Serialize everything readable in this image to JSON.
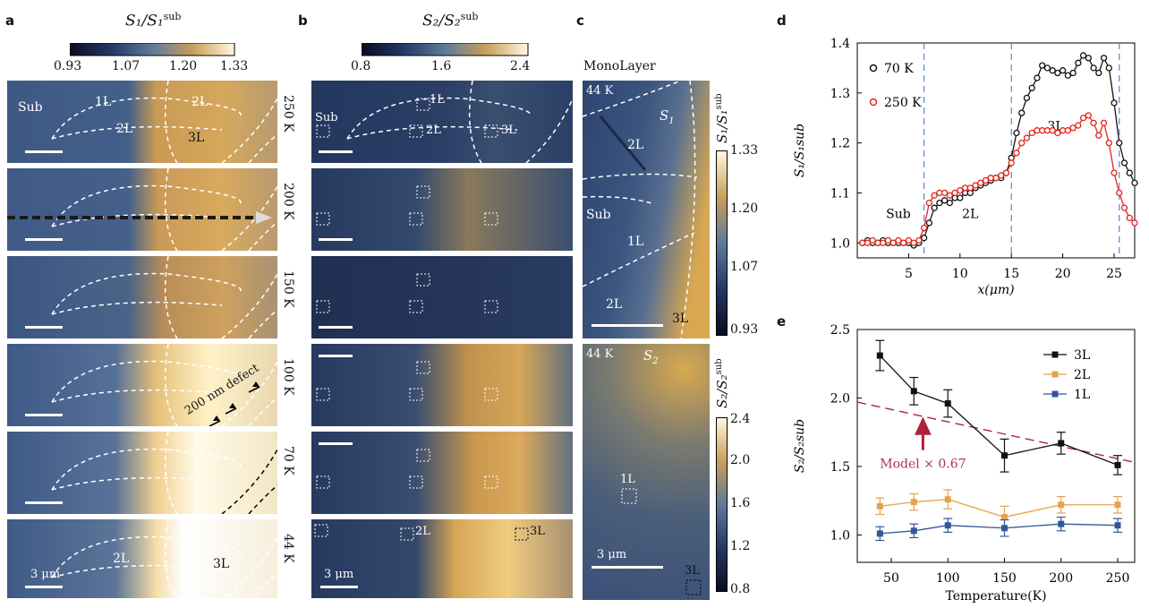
{
  "panels": {
    "a": "a",
    "b": "b",
    "c": "c",
    "d": "d",
    "e": "e"
  },
  "colorbar_a": {
    "title": "S₁/S₁",
    "sup": "sub",
    "ticks": [
      "0.93",
      "1.07",
      "1.20",
      "1.33"
    ]
  },
  "colorbar_b": {
    "title": "S₂/S₂",
    "sup": "sub",
    "ticks": [
      "0.8",
      "1.6",
      "2.4"
    ]
  },
  "temps": [
    "250 K",
    "200 K",
    "150 K",
    "100 K",
    "70 K",
    "44 K"
  ],
  "labels_a": {
    "sub": "Sub",
    "l1": "1L",
    "l2": "2L",
    "l2b": "2L",
    "l3": "3L",
    "defect": "200 nm defect",
    "scale": "3 μm",
    "l2_44": "2L",
    "l3_44": "3L"
  },
  "labels_b": {
    "sub": "Sub",
    "l1": "1L",
    "l2": "2L",
    "l3": "3L",
    "scale": "3 μm",
    "l2_44": "2L",
    "l3_44": "3L"
  },
  "panel_c": {
    "title": "MonoLayer",
    "top": {
      "temp": "44 K",
      "sym": "S",
      "symsub": "1",
      "l2": "2L",
      "sub": "Sub",
      "l1": "1L",
      "l2b": "2L",
      "l3": "3L"
    },
    "bot": {
      "temp": "44 K",
      "sym": "S",
      "symsub": "2",
      "l1": "1L",
      "scale": "3 μm",
      "l3": "3L"
    },
    "cb1": {
      "ticks": [
        "1.33",
        "1.20",
        "1.07",
        "0.93"
      ],
      "label": "S₁/S₁",
      "sup": "sub"
    },
    "cb2": {
      "ticks": [
        "2.4",
        "2.0",
        "1.6",
        "1.2",
        "0.8"
      ],
      "label": "S₂/S₂",
      "sup": "sub"
    }
  },
  "chart_data": [
    {
      "type": "line",
      "panel": "d",
      "xlabel": "x(μm)",
      "ylabel": "S₁/S₁sub",
      "xlim": [
        0,
        27
      ],
      "ylim": [
        0.97,
        1.4
      ],
      "xticks": [
        5,
        10,
        15,
        20,
        25
      ],
      "yticks": [
        1.0,
        1.1,
        1.2,
        1.3,
        1.4
      ],
      "vlines": [
        6.5,
        15,
        25.5
      ],
      "region_labels": [
        "Sub",
        "2L",
        "3L"
      ],
      "series": [
        {
          "name": "70 K",
          "color": "#111111",
          "x": [
            0.5,
            1,
            1.5,
            2,
            2.5,
            3,
            3.5,
            4,
            4.5,
            5,
            5.5,
            6,
            6.5,
            7,
            7.5,
            8,
            8.5,
            9,
            9.5,
            10,
            10.5,
            11,
            11.5,
            12,
            12.5,
            13,
            13.5,
            14,
            14.5,
            15,
            15.5,
            16,
            16.5,
            17,
            17.5,
            18,
            18.5,
            19,
            19.5,
            20,
            20.5,
            21,
            21.5,
            22,
            22.5,
            23,
            23.5,
            24,
            24.5,
            25,
            25.5,
            26,
            26.5,
            27
          ],
          "y": [
            1.0,
            1.005,
            1.0,
            1.0,
            1.005,
            1.0,
            1.0,
            1.0,
            1.0,
            1.0,
            0.995,
            1.0,
            1.01,
            1.04,
            1.07,
            1.08,
            1.085,
            1.08,
            1.09,
            1.09,
            1.1,
            1.1,
            1.11,
            1.115,
            1.12,
            1.125,
            1.13,
            1.13,
            1.14,
            1.17,
            1.22,
            1.26,
            1.29,
            1.31,
            1.33,
            1.355,
            1.35,
            1.345,
            1.34,
            1.345,
            1.335,
            1.34,
            1.36,
            1.375,
            1.37,
            1.35,
            1.34,
            1.37,
            1.35,
            1.28,
            1.2,
            1.16,
            1.14,
            1.12
          ]
        },
        {
          "name": "250 K",
          "color": "#e0241c",
          "x": [
            0.5,
            1,
            1.5,
            2,
            2.5,
            3,
            3.5,
            4,
            4.5,
            5,
            5.5,
            6,
            6.5,
            7,
            7.5,
            8,
            8.5,
            9,
            9.5,
            10,
            10.5,
            11,
            11.5,
            12,
            12.5,
            13,
            13.5,
            14,
            14.5,
            15,
            15.5,
            16,
            16.5,
            17,
            17.5,
            18,
            18.5,
            19,
            19.5,
            20,
            20.5,
            21,
            21.5,
            22,
            22.5,
            23,
            23.5,
            24,
            24.5,
            25,
            25.5,
            26,
            26.5,
            27
          ],
          "y": [
            1.0,
            1.0,
            1.005,
            1.0,
            1.0,
            1.005,
            1.0,
            1.005,
            1.0,
            1.005,
            1.0,
            1.005,
            1.03,
            1.08,
            1.095,
            1.1,
            1.1,
            1.095,
            1.1,
            1.105,
            1.11,
            1.11,
            1.115,
            1.12,
            1.125,
            1.13,
            1.13,
            1.135,
            1.14,
            1.16,
            1.18,
            1.2,
            1.21,
            1.22,
            1.225,
            1.225,
            1.225,
            1.225,
            1.22,
            1.225,
            1.225,
            1.23,
            1.235,
            1.25,
            1.255,
            1.24,
            1.215,
            1.24,
            1.2,
            1.14,
            1.1,
            1.07,
            1.05,
            1.04
          ]
        }
      ]
    },
    {
      "type": "line",
      "panel": "e",
      "xlabel": "Temperature(K)",
      "ylabel": "S₂/S₂sub",
      "xlim": [
        20,
        265
      ],
      "ylim": [
        0.8,
        2.5
      ],
      "xticks": [
        50,
        100,
        150,
        200,
        250
      ],
      "yticks": [
        1.0,
        1.5,
        2.0,
        2.5
      ],
      "annotation": "Model × 0.67",
      "model_line": {
        "x": [
          20,
          265
        ],
        "y": [
          1.97,
          1.53
        ]
      },
      "series": [
        {
          "name": "3L",
          "color": "#111111",
          "x": [
            40,
            70,
            100,
            150,
            200,
            250
          ],
          "y": [
            2.31,
            2.05,
            1.96,
            1.58,
            1.67,
            1.51
          ],
          "err": [
            0.11,
            0.1,
            0.1,
            0.12,
            0.08,
            0.07
          ]
        },
        {
          "name": "2L",
          "color": "#e6a24b",
          "x": [
            40,
            70,
            100,
            150,
            200,
            250
          ],
          "y": [
            1.21,
            1.24,
            1.26,
            1.13,
            1.22,
            1.22
          ],
          "err": [
            0.06,
            0.06,
            0.07,
            0.08,
            0.06,
            0.06
          ]
        },
        {
          "name": "1L",
          "color": "#33569b",
          "x": [
            40,
            70,
            100,
            150,
            200,
            250
          ],
          "y": [
            1.01,
            1.03,
            1.07,
            1.05,
            1.08,
            1.07
          ],
          "err": [
            0.05,
            0.05,
            0.05,
            0.06,
            0.05,
            0.05
          ]
        }
      ]
    }
  ]
}
